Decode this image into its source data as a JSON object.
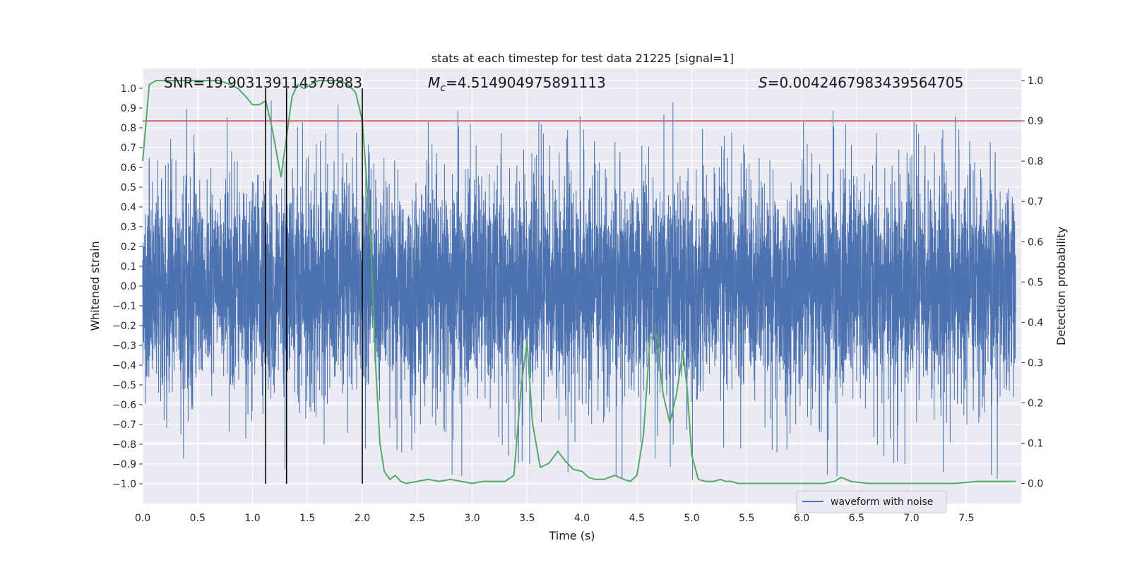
{
  "chart_data": {
    "type": "line",
    "title": "stats at each timestep for test data 21225 [signal=1]",
    "xlabel": "Time (s)",
    "ylabel_left": "Whitened strain",
    "ylabel_right": "Detection probability",
    "xlim": [
      0.0,
      8.0
    ],
    "ylim_left": [
      -1.1,
      1.1
    ],
    "ylim_right": [
      -0.05,
      1.03
    ],
    "x_ticks": [
      "0.0",
      "0.5",
      "1.0",
      "1.5",
      "2.0",
      "2.5",
      "3.0",
      "3.5",
      "4.0",
      "4.5",
      "5.0",
      "5.5",
      "6.0",
      "6.5",
      "7.0",
      "7.5"
    ],
    "y_left_ticks": [
      "1.0",
      "0.9",
      "0.8",
      "0.7",
      "0.6",
      "0.5",
      "0.4",
      "0.3",
      "0.2",
      "0.1",
      "0.0",
      "-0.1",
      "-0.2",
      "-0.3",
      "-0.4",
      "-0.5",
      "-0.6",
      "-0.7",
      "-0.8",
      "-0.9",
      "-1.0"
    ],
    "y_right_ticks": [
      "1.0",
      "0.9",
      "0.8",
      "0.7",
      "0.6",
      "0.5",
      "0.4",
      "0.3",
      "0.2",
      "0.1",
      "0.0"
    ],
    "grid": true,
    "legend": {
      "position": "lower-right",
      "entries": [
        "waveform with noise"
      ]
    },
    "annotations": {
      "snr": "SNR=19.903139114379883",
      "mc_symbol": "M",
      "mc_sub": "c",
      "mc_value": "=4.514904975891113",
      "s_symbol": "S",
      "s_value": "=0.004246798343956470​5"
    },
    "threshold_right": 0.9,
    "vertical_lines_x": [
      1.12,
      1.31,
      2.0
    ],
    "waveform": {
      "name": "waveform with noise",
      "color": "#4c72b0",
      "typical_amplitude": 0.45,
      "peak_amplitude": 0.98
    },
    "detection_probability": {
      "color": "#55a868",
      "x": [
        0.0,
        0.06,
        0.12,
        0.2,
        0.3,
        0.4,
        0.5,
        0.6,
        0.7,
        0.8,
        0.87,
        0.94,
        1.0,
        1.06,
        1.12,
        1.18,
        1.22,
        1.26,
        1.31,
        1.36,
        1.41,
        1.47,
        1.53,
        1.6,
        1.65,
        1.72,
        1.8,
        1.87,
        1.94,
        2.0,
        2.04,
        2.08,
        2.12,
        2.16,
        2.2,
        2.25,
        2.3,
        2.35,
        2.4,
        2.5,
        2.6,
        2.7,
        2.8,
        2.9,
        3.0,
        3.1,
        3.2,
        3.3,
        3.38,
        3.45,
        3.5,
        3.55,
        3.62,
        3.7,
        3.78,
        3.85,
        3.92,
        4.0,
        4.06,
        4.12,
        4.2,
        4.3,
        4.38,
        4.44,
        4.5,
        4.56,
        4.62,
        4.68,
        4.74,
        4.8,
        4.86,
        4.92,
        4.96,
        5.0,
        5.06,
        5.12,
        5.2,
        5.26,
        5.31,
        5.36,
        5.42,
        5.5,
        5.6,
        5.8,
        6.0,
        6.2,
        6.3,
        6.36,
        6.45,
        6.6,
        6.8,
        7.0,
        7.2,
        7.4,
        7.6,
        7.8,
        7.95
      ],
      "y": [
        0.8,
        0.99,
        1.0,
        1.0,
        1.0,
        1.0,
        1.0,
        1.0,
        1.0,
        0.99,
        0.98,
        0.96,
        0.94,
        0.94,
        0.95,
        0.88,
        0.82,
        0.76,
        0.86,
        0.96,
        0.99,
        0.98,
        0.99,
        1.0,
        1.0,
        1.0,
        1.0,
        0.99,
        0.97,
        0.9,
        0.75,
        0.58,
        0.3,
        0.1,
        0.03,
        0.01,
        0.02,
        0.005,
        0.0,
        0.005,
        0.01,
        0.005,
        0.01,
        0.005,
        0.0,
        0.005,
        0.005,
        0.005,
        0.02,
        0.25,
        0.35,
        0.15,
        0.04,
        0.05,
        0.08,
        0.055,
        0.035,
        0.03,
        0.015,
        0.01,
        0.01,
        0.02,
        0.01,
        0.005,
        0.02,
        0.12,
        0.36,
        0.37,
        0.22,
        0.15,
        0.22,
        0.33,
        0.23,
        0.07,
        0.01,
        0.005,
        0.005,
        0.01,
        0.005,
        0.005,
        0.0,
        0.0,
        0.0,
        0.0,
        0.0,
        0.0,
        0.005,
        0.015,
        0.005,
        0.0,
        0.0,
        0.0,
        0.0,
        0.0,
        0.005,
        0.005,
        0.005
      ]
    }
  }
}
